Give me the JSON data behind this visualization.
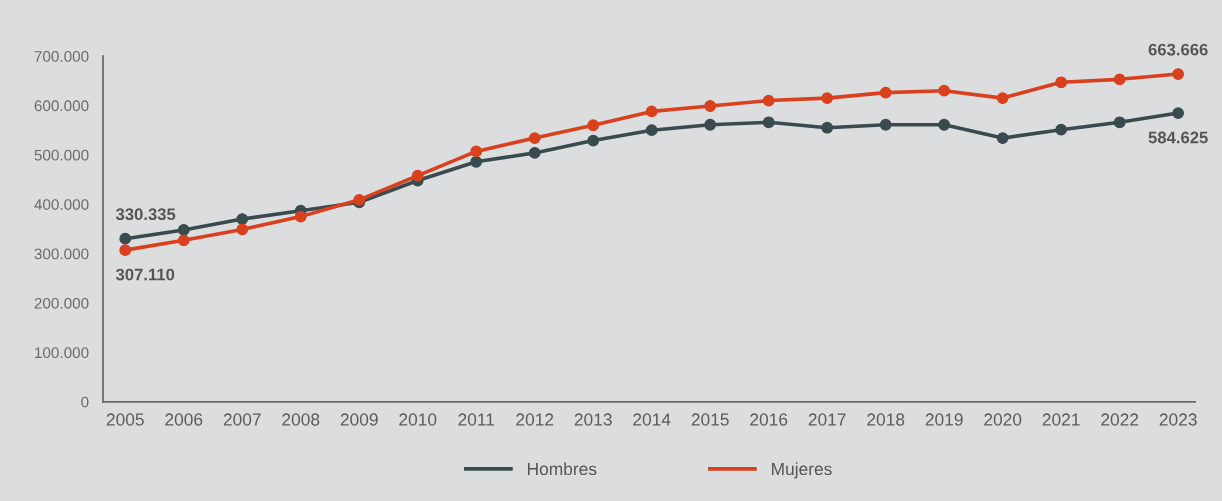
{
  "chart_data": {
    "type": "line",
    "categories": [
      "2005",
      "2006",
      "2007",
      "2008",
      "2009",
      "2010",
      "2011",
      "2012",
      "2013",
      "2014",
      "2015",
      "2016",
      "2017",
      "2018",
      "2019",
      "2020",
      "2021",
      "2022",
      "2023"
    ],
    "series": [
      {
        "name": "Hombres",
        "color": "#3a4b50",
        "values": [
          330335,
          348000,
          370000,
          387000,
          404000,
          448000,
          486000,
          504000,
          529000,
          550000,
          561000,
          566000,
          555000,
          561000,
          561000,
          534000,
          551000,
          566000,
          584625
        ],
        "value_labels": [
          "330.335",
          null,
          null,
          null,
          null,
          null,
          null,
          null,
          null,
          null,
          null,
          null,
          null,
          null,
          null,
          null,
          null,
          null,
          "584.625"
        ]
      },
      {
        "name": "Mujeres",
        "color": "#d9411e",
        "values": [
          307110,
          327000,
          349000,
          375000,
          409000,
          458000,
          507000,
          534000,
          560000,
          588000,
          599000,
          610000,
          615000,
          626000,
          630000,
          615000,
          647000,
          653000,
          663666
        ],
        "value_labels": [
          "307.110",
          null,
          null,
          null,
          null,
          null,
          null,
          null,
          null,
          null,
          null,
          null,
          null,
          null,
          null,
          null,
          null,
          null,
          "663.666"
        ]
      }
    ],
    "ylim": [
      0,
      700000
    ],
    "yticks": [
      0,
      {
        "value": 100000,
        "label": "100.000"
      },
      {
        "value": 200000,
        "label": "200.000"
      },
      {
        "value": 300000,
        "label": "300.000"
      },
      {
        "value": 400000,
        "label": "400.000"
      },
      {
        "value": 500000,
        "label": "500.000"
      },
      {
        "value": 600000,
        "label": "600.000"
      },
      {
        "value": 700000,
        "label": "700.000"
      }
    ],
    "grid": false,
    "legend": "bottom",
    "marker": "circle",
    "line_style": "solid"
  }
}
